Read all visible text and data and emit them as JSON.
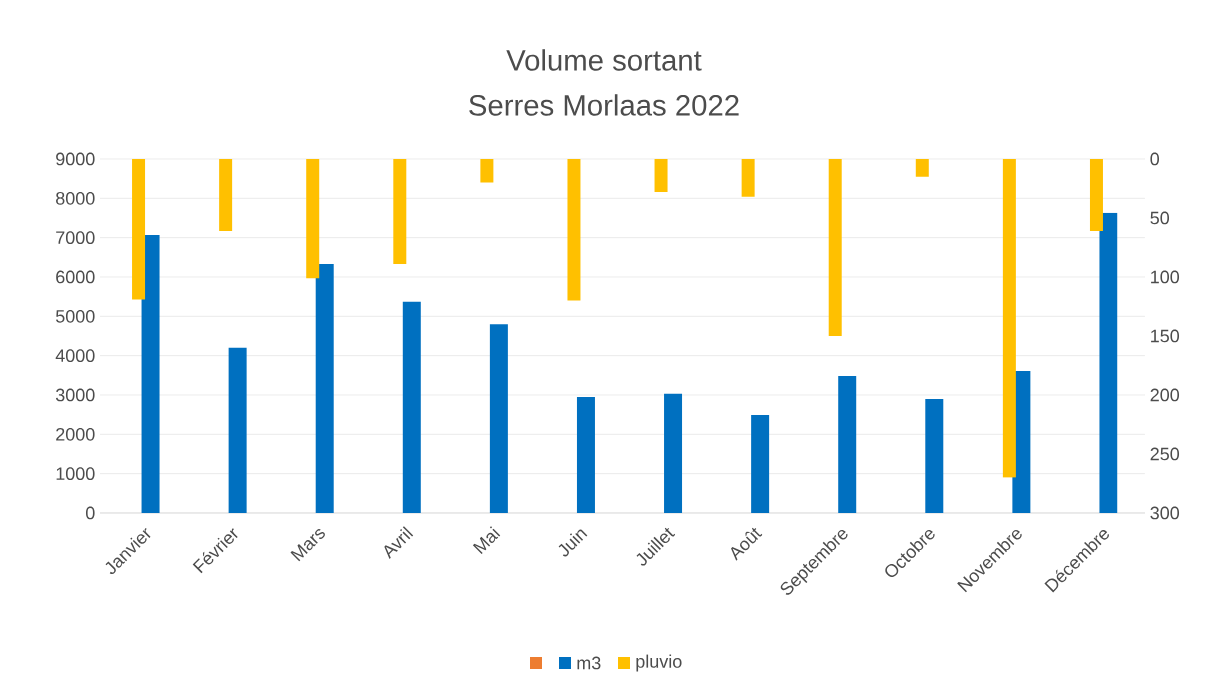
{
  "chart_data": {
    "type": "bar",
    "title": "Volume sortant",
    "subtitle": "Serres Morlaas 2022",
    "categories": [
      "Janvier",
      "Février",
      "Mars",
      "Avril",
      "Mai",
      "Juin",
      "Juillet",
      "Août",
      "Septembre",
      "Octobre",
      "Novembre",
      "Décembre"
    ],
    "series": [
      {
        "color": "#ed7d31",
        "values": [
          null,
          null,
          null,
          null,
          null,
          null,
          null,
          null,
          null,
          null,
          null,
          null
        ]
      },
      {
        "name": "m3",
        "color": "#0070c0",
        "values": [
          7070,
          4200,
          6330,
          5370,
          4800,
          2950,
          3030,
          2490,
          3480,
          2900,
          3610,
          7630
        ]
      },
      {
        "name": "pluvio",
        "color": "#ffc000",
        "axis": "y2",
        "values": [
          119,
          61,
          101,
          89,
          20,
          120,
          28,
          32,
          150,
          15,
          270,
          61
        ]
      }
    ],
    "ylim": [
      0,
      9000
    ],
    "yticks": [
      0,
      1000,
      2000,
      3000,
      4000,
      5000,
      6000,
      7000,
      8000,
      9000
    ],
    "y2lim": [
      300,
      0
    ],
    "y2ticks": [
      0,
      50,
      100,
      150,
      200,
      250,
      300
    ],
    "grid": "y",
    "legend": "bottom"
  }
}
